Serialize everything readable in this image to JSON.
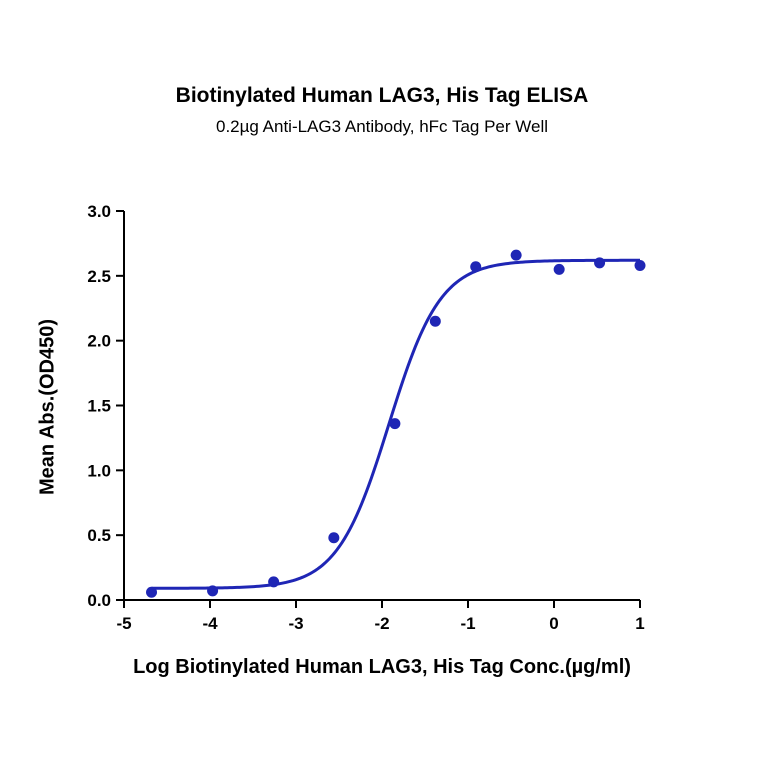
{
  "chart_data": {
    "type": "scatter",
    "title": "Biotinylated Human LAG3, His Tag ELISA",
    "subtitle": "0.2µg Anti-LAG3 Antibody, hFc Tag Per Well",
    "xlabel": "Log Biotinylated Human LAG3, His Tag Conc.(µg/ml)",
    "ylabel": "Mean Abs.(OD450)",
    "xlim": [
      -5,
      1
    ],
    "ylim": [
      0,
      3.0
    ],
    "x_ticks": [
      -5,
      -4,
      -3,
      -2,
      -1,
      0,
      1
    ],
    "x_tick_labels": [
      "-5",
      "-4",
      "-3",
      "-2",
      "-1",
      "0",
      "1"
    ],
    "y_ticks": [
      0,
      0.5,
      1.0,
      1.5,
      2.0,
      2.5,
      3.0
    ],
    "y_tick_labels": [
      "0.0",
      "0.5",
      "1.0",
      "1.5",
      "2.0",
      "2.5",
      "3.0"
    ],
    "grid": false,
    "series": [
      {
        "x": [
          -4.68,
          -3.97,
          -3.26,
          -2.56,
          -1.85,
          -1.38,
          -0.91,
          -0.44,
          0.06,
          0.53,
          1.0
        ],
        "y": [
          0.06,
          0.07,
          0.14,
          0.48,
          1.36,
          2.15,
          2.57,
          2.66,
          2.55,
          2.6,
          2.58
        ],
        "color": "#1f26b5"
      }
    ],
    "fit_curve": {
      "type": "4PL",
      "bottom": 0.09,
      "top": 2.62,
      "log_ec50": -1.92,
      "hill_slope": 1.45,
      "color": "#1f26b5"
    }
  }
}
